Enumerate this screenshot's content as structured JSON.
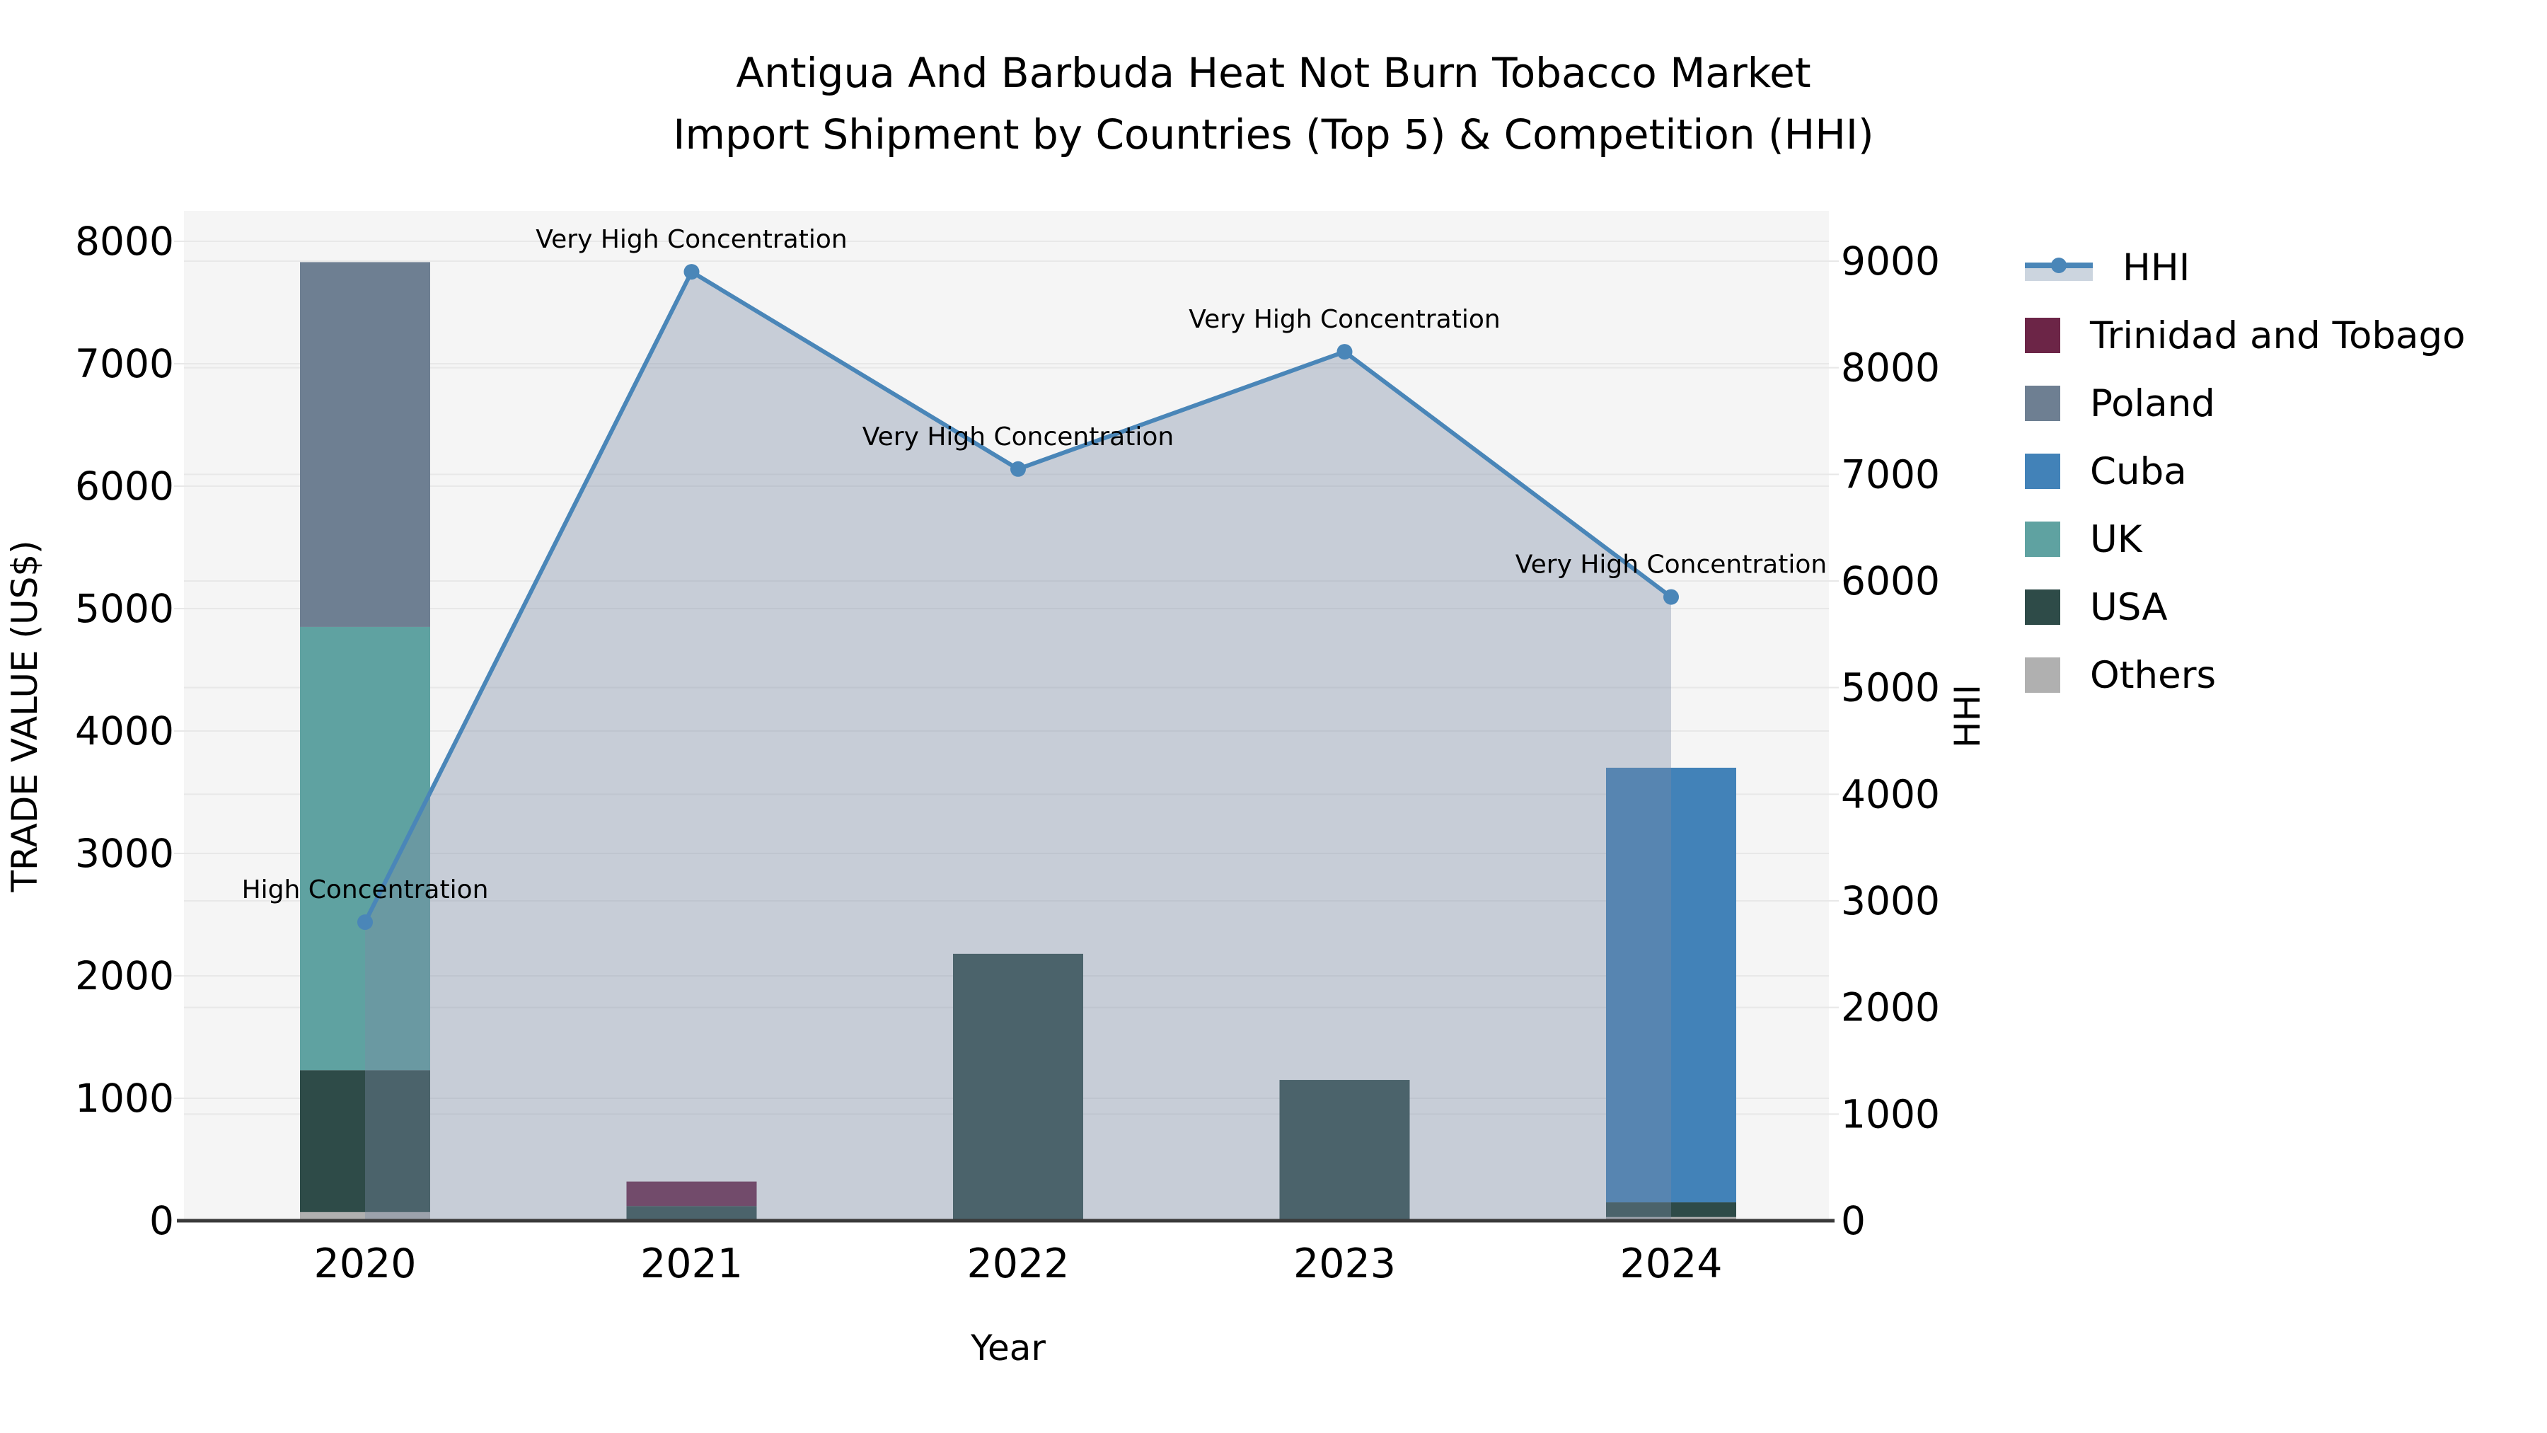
{
  "title": {
    "line1": "Antigua And Barbuda Heat Not Burn Tobacco Market",
    "line2": "Import Shipment by Countries (Top 5) & Competition (HHI)"
  },
  "axes": {
    "x_label": "Year",
    "y_left_label": "TRADE VALUE (US$)",
    "y_right_label": "HHI",
    "y_left_ticks": [
      "0",
      "1000",
      "2000",
      "3000",
      "4000",
      "5000",
      "6000",
      "7000",
      "8000"
    ],
    "y_right_ticks": [
      "0",
      "1000",
      "2000",
      "3000",
      "4000",
      "5000",
      "6000",
      "7000",
      "8000",
      "9000"
    ]
  },
  "legend": {
    "items": [
      {
        "label": "HHI",
        "type": "line",
        "color": "#4a86b8"
      },
      {
        "label": "Trinidad and Tobago",
        "type": "swatch",
        "color": "#6c2547"
      },
      {
        "label": "Poland",
        "type": "swatch",
        "color": "#6e7f92"
      },
      {
        "label": "Cuba",
        "type": "swatch",
        "color": "#4282b8"
      },
      {
        "label": "UK",
        "type": "swatch",
        "color": "#5fa2a1"
      },
      {
        "label": "USA",
        "type": "swatch",
        "color": "#2e4b48"
      },
      {
        "label": "Others",
        "type": "swatch",
        "color": "#b0b0b0"
      }
    ]
  },
  "chart_data": {
    "type": "combo-stacked-bar-line",
    "categories": [
      "2020",
      "2021",
      "2022",
      "2023",
      "2024"
    ],
    "bar_axis": "left",
    "ylabel_left": "TRADE VALUE (US$)",
    "ylabel_right": "HHI",
    "xlabel": "Year",
    "ylim_left": [
      0,
      8250
    ],
    "ylim_right": [
      0,
      9470
    ],
    "grid": true,
    "legend_position": "right",
    "series": [
      {
        "name": "Others",
        "color": "#b0b0b0",
        "values": [
          70,
          0,
          0,
          0,
          30
        ]
      },
      {
        "name": "USA",
        "color": "#2e4b48",
        "values": [
          1160,
          120,
          2180,
          1150,
          120
        ]
      },
      {
        "name": "UK",
        "color": "#5fa2a1",
        "values": [
          3620,
          0,
          0,
          0,
          0
        ]
      },
      {
        "name": "Cuba",
        "color": "#4282b8",
        "values": [
          0,
          0,
          0,
          0,
          3550
        ]
      },
      {
        "name": "Poland",
        "color": "#6e7f92",
        "values": [
          2980,
          0,
          0,
          0,
          0
        ]
      },
      {
        "name": "Trinidad and Tobago",
        "color": "#6c2547",
        "values": [
          0,
          200,
          0,
          0,
          0
        ]
      }
    ],
    "bar_totals": [
      7830,
      320,
      2180,
      1150,
      3700
    ],
    "line_series": {
      "name": "HHI",
      "axis": "right",
      "color": "#4a86b8",
      "area_fill": "rgba(123,140,165,0.38)",
      "values": [
        2800,
        8900,
        7050,
        8150,
        5850
      ]
    },
    "annotations": [
      {
        "category": "2020",
        "text": "High Concentration"
      },
      {
        "category": "2021",
        "text": "Very High Concentration"
      },
      {
        "category": "2022",
        "text": "Very High Concentration"
      },
      {
        "category": "2023",
        "text": "Very High Concentration"
      },
      {
        "category": "2024",
        "text": "Very High Concentration"
      }
    ]
  }
}
